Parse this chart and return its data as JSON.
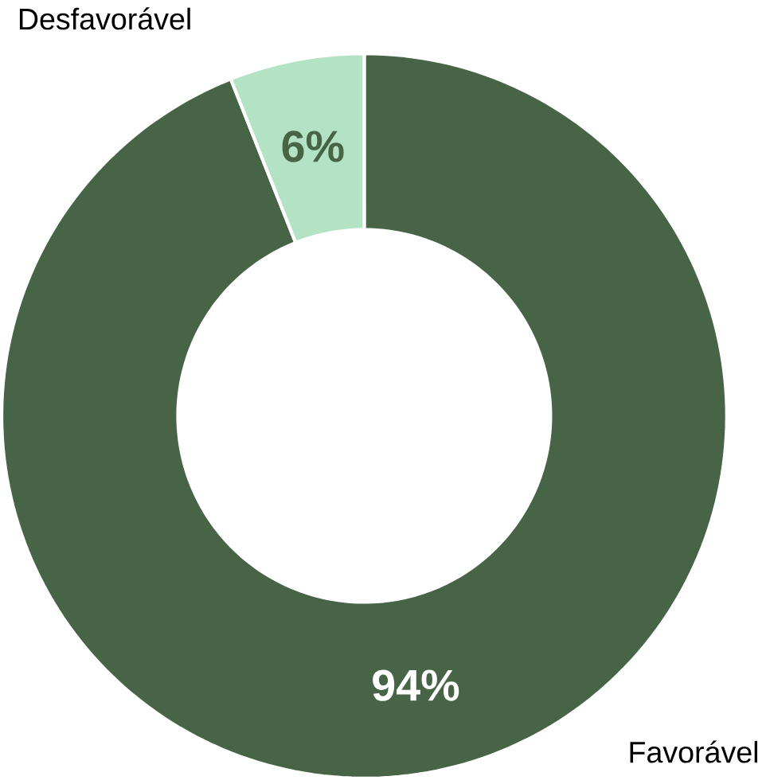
{
  "chart_data": {
    "type": "donut",
    "categories": [
      "Favorável",
      "Desfavorável"
    ],
    "values": [
      94,
      6
    ],
    "colors": [
      "#476447",
      "#b3e3c4"
    ],
    "value_labels": [
      "94%",
      "6%"
    ]
  }
}
